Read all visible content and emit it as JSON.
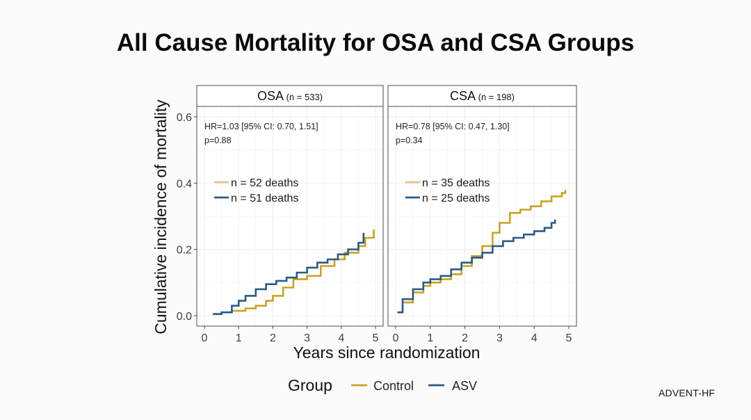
{
  "title": "All Cause Mortality for OSA and CSA Groups",
  "logo": "ADVENT-HF",
  "colors": {
    "control": "#c9a227",
    "asv": "#2b5b86",
    "control_legend_light": "#e8bf8c"
  },
  "chart_data": {
    "type": "line",
    "xlabel": "Years since randomization",
    "ylabel": "Cumulative incidence of mortality",
    "xlim": [
      0,
      5
    ],
    "ylim": [
      0,
      0.6
    ],
    "x_ticks": [
      0,
      1,
      2,
      3,
      4,
      5
    ],
    "y_ticks": [
      0.0,
      0.2,
      0.4,
      0.6
    ],
    "y_tick_labels": [
      "0.0",
      "0.2",
      "0.4",
      "0.6"
    ],
    "grid": true,
    "legend": {
      "title": "Group",
      "placement": "bottom",
      "entries": [
        {
          "name": "Control",
          "color": "#c9a227"
        },
        {
          "name": "ASV",
          "color": "#2b5b86"
        }
      ]
    },
    "panels": [
      {
        "strip": "OSA",
        "strip_n": "(n = 533)",
        "stats": [
          "HR=1.03 [95% CI: 0.70, 1.51]",
          "p=0.88"
        ],
        "deaths_labels": [
          "n = 52 deaths",
          "n = 51 deaths"
        ],
        "series": [
          {
            "name": "Control",
            "x": [
              0.25,
              0.5,
              0.8,
              1.2,
              1.5,
              1.8,
              2.0,
              2.3,
              2.6,
              3.0,
              3.4,
              3.8,
              4.1,
              4.5,
              4.7,
              4.95
            ],
            "y": [
              0.005,
              0.01,
              0.015,
              0.022,
              0.03,
              0.045,
              0.06,
              0.085,
              0.11,
              0.12,
              0.15,
              0.17,
              0.19,
              0.21,
              0.235,
              0.26
            ]
          },
          {
            "name": "ASV",
            "x": [
              0.25,
              0.5,
              0.8,
              1.0,
              1.2,
              1.5,
              1.8,
              2.1,
              2.4,
              2.7,
              3.0,
              3.3,
              3.6,
              3.9,
              4.2,
              4.5,
              4.65
            ],
            "y": [
              0.005,
              0.01,
              0.03,
              0.045,
              0.06,
              0.08,
              0.095,
              0.105,
              0.115,
              0.13,
              0.145,
              0.16,
              0.17,
              0.185,
              0.2,
              0.22,
              0.25
            ]
          }
        ]
      },
      {
        "strip": "CSA",
        "strip_n": "(n = 198)",
        "stats": [
          "HR=0.78 [95% CI: 0.47, 1.30]",
          "p=0.34"
        ],
        "deaths_labels": [
          "n = 35 deaths",
          "n = 25 deaths"
        ],
        "series": [
          {
            "name": "Control",
            "x": [
              0.05,
              0.2,
              0.5,
              0.8,
              1.0,
              1.3,
              1.6,
              1.9,
              2.2,
              2.5,
              2.8,
              3.0,
              3.3,
              3.6,
              3.9,
              4.2,
              4.5,
              4.8,
              4.9
            ],
            "y": [
              0.01,
              0.04,
              0.07,
              0.09,
              0.1,
              0.11,
              0.125,
              0.15,
              0.18,
              0.21,
              0.25,
              0.28,
              0.31,
              0.32,
              0.33,
              0.345,
              0.36,
              0.37,
              0.38
            ]
          },
          {
            "name": "ASV",
            "x": [
              0.05,
              0.2,
              0.5,
              0.8,
              1.0,
              1.3,
              1.6,
              1.9,
              2.2,
              2.5,
              2.8,
              3.1,
              3.4,
              3.7,
              4.0,
              4.3,
              4.5,
              4.6
            ],
            "y": [
              0.01,
              0.05,
              0.08,
              0.1,
              0.11,
              0.12,
              0.14,
              0.16,
              0.175,
              0.19,
              0.21,
              0.225,
              0.235,
              0.245,
              0.255,
              0.265,
              0.28,
              0.29
            ]
          }
        ]
      }
    ]
  }
}
